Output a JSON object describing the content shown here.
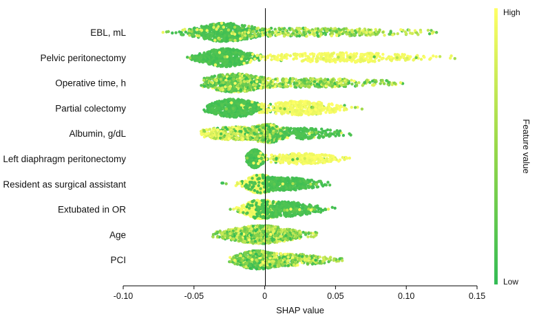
{
  "chart_data": {
    "type": "scatter",
    "subtype": "beeswarm",
    "xlabel": "SHAP value",
    "xlim": [
      -0.1,
      0.15
    ],
    "xticks": [
      {
        "value": -0.1,
        "label": "-0.10"
      },
      {
        "value": -0.05,
        "label": "-0.05"
      },
      {
        "value": 0,
        "label": "0"
      },
      {
        "value": 0.05,
        "label": "0.05"
      },
      {
        "value": 0.1,
        "label": "0.10"
      },
      {
        "value": 0.15,
        "label": "0.15"
      }
    ],
    "zero_line": true,
    "grid": false,
    "colorbar": {
      "title": "Feature value",
      "high_label": "High",
      "low_label": "Low",
      "high_color": "#ffff66",
      "low_color": "#33bb55"
    },
    "features": [
      {
        "name": "EBL, mL",
        "min": -0.073,
        "max": 0.122,
        "clusters": [
          {
            "center": -0.028,
            "spread": 0.012,
            "peak": 1.0,
            "weight": 0.6,
            "tone": "low"
          },
          {
            "center": 0.03,
            "spread": 0.04,
            "peak": 0.18,
            "weight": 0.4,
            "tone": "mixed"
          }
        ]
      },
      {
        "name": "Pelvic peritonectomy",
        "min": -0.055,
        "max": 0.136,
        "clusters": [
          {
            "center": -0.028,
            "spread": 0.01,
            "peak": 1.0,
            "weight": 0.62,
            "tone": "low"
          },
          {
            "center": 0.055,
            "spread": 0.03,
            "peak": 0.25,
            "weight": 0.38,
            "tone": "high"
          }
        ]
      },
      {
        "name": "Operative time, h",
        "min": -0.045,
        "max": 0.098,
        "clusters": [
          {
            "center": -0.022,
            "spread": 0.012,
            "peak": 1.0,
            "weight": 0.6,
            "tone": "mixedlow"
          },
          {
            "center": 0.03,
            "spread": 0.03,
            "peak": 0.22,
            "weight": 0.4,
            "tone": "mixed"
          }
        ]
      },
      {
        "name": "Partial colectomy",
        "min": -0.043,
        "max": 0.078,
        "clusters": [
          {
            "center": -0.022,
            "spread": 0.01,
            "peak": 1.0,
            "weight": 0.62,
            "tone": "low"
          },
          {
            "center": 0.025,
            "spread": 0.015,
            "peak": 0.6,
            "weight": 0.38,
            "tone": "high"
          }
        ]
      },
      {
        "name": "Albumin, g/dL",
        "min": -0.045,
        "max": 0.062,
        "clusters": [
          {
            "center": -0.02,
            "spread": 0.015,
            "peak": 0.5,
            "weight": 0.45,
            "tone": "highmixed"
          },
          {
            "center": 0.002,
            "spread": 0.005,
            "peak": 1.0,
            "weight": 0.35,
            "tone": "mixed"
          },
          {
            "center": 0.025,
            "spread": 0.015,
            "peak": 0.35,
            "weight": 0.2,
            "tone": "low"
          }
        ]
      },
      {
        "name": "Left diaphragm peritonectomy",
        "min": -0.013,
        "max": 0.06,
        "clusters": [
          {
            "center": -0.007,
            "spread": 0.003,
            "peak": 1.0,
            "weight": 0.7,
            "tone": "low"
          },
          {
            "center": 0.025,
            "spread": 0.015,
            "peak": 0.3,
            "weight": 0.3,
            "tone": "high"
          }
        ]
      },
      {
        "name": "Resident as surgical assistant",
        "min": -0.031,
        "max": 0.046,
        "clusters": [
          {
            "center": -0.004,
            "spread": 0.005,
            "peak": 1.0,
            "weight": 0.55,
            "tone": "high"
          },
          {
            "center": 0.015,
            "spread": 0.012,
            "peak": 0.5,
            "weight": 0.45,
            "tone": "low"
          }
        ]
      },
      {
        "name": "Extubated in OR",
        "min": -0.025,
        "max": 0.053,
        "clusters": [
          {
            "center": -0.004,
            "spread": 0.006,
            "peak": 1.0,
            "weight": 0.55,
            "tone": "high"
          },
          {
            "center": 0.015,
            "spread": 0.012,
            "peak": 0.65,
            "weight": 0.45,
            "tone": "low"
          }
        ]
      },
      {
        "name": "Age",
        "min": -0.037,
        "max": 0.037,
        "clusters": [
          {
            "center": -0.003,
            "spread": 0.014,
            "peak": 1.0,
            "weight": 1.0,
            "tone": "mixed"
          }
        ]
      },
      {
        "name": "PCI",
        "min": -0.025,
        "max": 0.055,
        "clusters": [
          {
            "center": -0.006,
            "spread": 0.008,
            "peak": 1.0,
            "weight": 0.65,
            "tone": "mixedlow"
          },
          {
            "center": 0.018,
            "spread": 0.015,
            "peak": 0.4,
            "weight": 0.35,
            "tone": "mixed"
          }
        ]
      }
    ]
  }
}
